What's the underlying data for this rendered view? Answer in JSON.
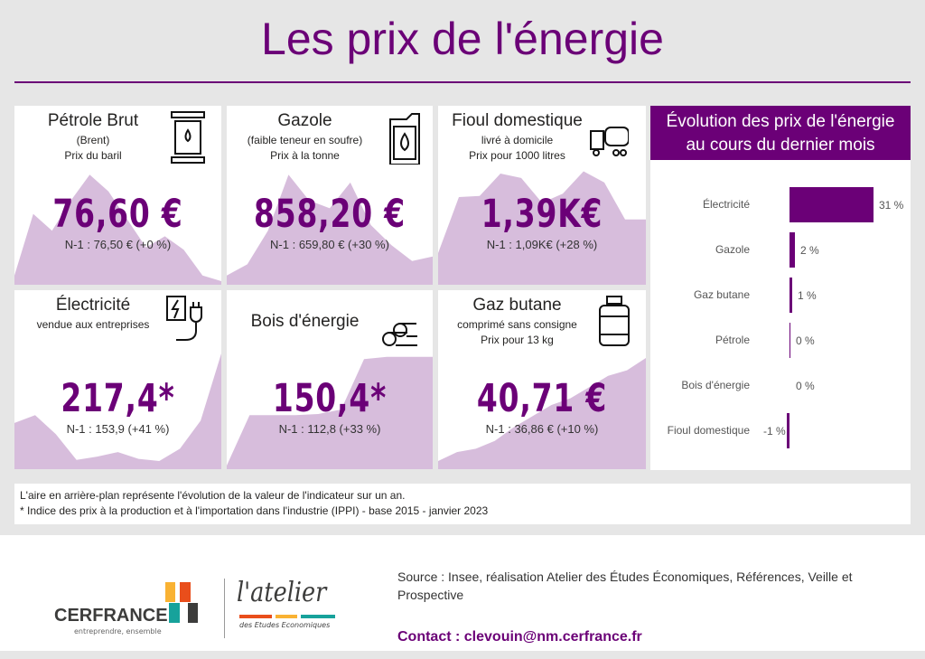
{
  "title": "Les prix de l'énergie",
  "accent": "#6b0077",
  "area_color": "#d7bddc",
  "cards": [
    {
      "title": "Pétrole Brut",
      "sub1": "(Brent)",
      "sub2": "Prix du baril",
      "value": "76,60 €",
      "n1": "N-1 : 76,50 € (+0 %)",
      "icon": "oil-barrel-icon",
      "trend": [
        5,
        60,
        45,
        72,
        95,
        80,
        55,
        30,
        40,
        28,
        5,
        0
      ]
    },
    {
      "title": "Gazole",
      "sub1": "(faible teneur en soufre)",
      "sub2": "Prix à la tonne",
      "value": "858,20 €",
      "n1": "N-1 : 659,80 € (+30 %)",
      "icon": "jerrycan-icon",
      "trend": [
        5,
        15,
        45,
        95,
        72,
        65,
        88,
        50,
        32,
        18,
        22
      ]
    },
    {
      "title": "Fioul domestique",
      "sub1": "livré à domicile",
      "sub2": "Prix pour 1000 litres",
      "value": "1,39K€",
      "n1": "N-1 : 1,09K€ (+28 %)",
      "icon": "tanker-truck-icon",
      "trend": [
        25,
        75,
        76,
        96,
        92,
        70,
        78,
        98,
        88,
        55,
        55
      ]
    },
    {
      "title": "Électricité",
      "sub1": "vendue aux entreprises",
      "sub2": "",
      "value": "217,4*",
      "n1": "N-1 : 153,9 (+41 %)",
      "icon": "electric-plug-icon",
      "trend": [
        38,
        45,
        28,
        5,
        8,
        12,
        6,
        4,
        15,
        40,
        100
      ]
    },
    {
      "title": "Bois d'énergie",
      "sub1": "",
      "sub2": "",
      "value": "150,4*",
      "n1": "N-1 : 112,8 (+33 %)",
      "icon": "logs-icon",
      "trend": [
        0,
        45,
        45,
        45,
        46,
        50,
        95,
        97,
        97,
        97
      ]
    },
    {
      "title": "Gaz butane",
      "sub1": "comprimé sans consigne",
      "sub2": "Prix pour 13 kg",
      "value": "40,71 €",
      "n1": "N-1 : 36,86 € (+10 %)",
      "icon": "gas-bottle-icon",
      "trend": [
        4,
        12,
        15,
        22,
        34,
        44,
        54,
        60,
        70,
        80,
        85,
        96
      ]
    }
  ],
  "chart_data": {
    "type": "bar",
    "title": "Évolution des prix de l'énergie au cours du dernier mois",
    "title_lines": [
      "Évolution des prix de l'énergie",
      "au cours du dernier mois"
    ],
    "categories": [
      "Électricité",
      "Gazole",
      "Gaz butane",
      "Pétrole",
      "Bois d'énergie",
      "Fioul domestique"
    ],
    "values": [
      31,
      2,
      1,
      0,
      0,
      -1
    ],
    "labels": [
      "31 %",
      "2 %",
      "1 %",
      "0 %",
      "0 %",
      "-1 %"
    ],
    "orientation": "horizontal"
  },
  "note": {
    "line1": "L'aire en arrière-plan représente l'évolution de la valeur de l'indicateur sur un an.",
    "line2": " * Indice des prix à la production et à l'importation dans l'industrie (IPPI) - base 2015 - janvier 2023"
  },
  "footer": {
    "logo1": "CERFRANCE",
    "logo1_tag": "entreprendre, ensemble",
    "logo2": "l'atelier",
    "logo2_tag": "des Etudes Economiques",
    "source": "Source : Insee, réalisation Atelier des Études Économiques, Références, Veille et Prospective",
    "contact": "Contact : clevouin@nm.cerfrance.fr"
  }
}
